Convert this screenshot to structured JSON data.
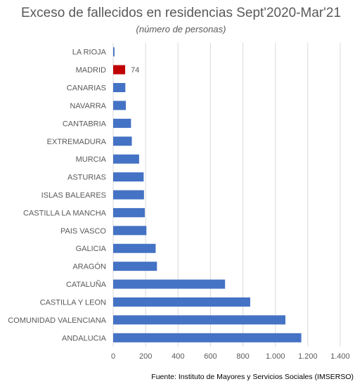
{
  "chart_data": {
    "type": "bar",
    "orientation": "horizontal",
    "title": "Exceso de fallecidos en residencias Sept'2020-Mar'21",
    "subtitle": "(número de personas)",
    "categories": [
      "LA RIOJA",
      "MADRID",
      "CANARIAS",
      "NAVARRA",
      "CANTABRIA",
      "EXTREMADURA",
      "MURCIA",
      "ASTURIAS",
      "ISLAS BALEARES",
      "CASTILLA LA MANCHA",
      "PAIS VASCO",
      "GALICIA",
      "ARAGÓN",
      "CATALUÑA",
      "CASTILLA Y LEON",
      "COMUNIDAD VALENCIANA",
      "ANDALUCIA"
    ],
    "values": [
      8,
      74,
      75,
      78,
      110,
      115,
      160,
      188,
      190,
      195,
      205,
      262,
      270,
      690,
      845,
      1062,
      1160
    ],
    "data_labels": [
      {
        "category": "MADRID",
        "text": "74"
      }
    ],
    "xlim": [
      0,
      1400
    ],
    "xticks": [
      0,
      200,
      400,
      600,
      800,
      1000,
      1200,
      1400
    ],
    "xtick_labels": [
      "0",
      "200",
      "400",
      "600",
      "800",
      "1.000",
      "1.200",
      "1.400"
    ],
    "grid": "vertical",
    "colors": {
      "bar": "#4472c4",
      "highlight": "#c00000",
      "grid": "#d9d9d9",
      "text": "#595959"
    },
    "highlight_category": "MADRID"
  },
  "source": "Fuente: Instituto de Mayores y Servicios Sociales (IMSERSO)"
}
